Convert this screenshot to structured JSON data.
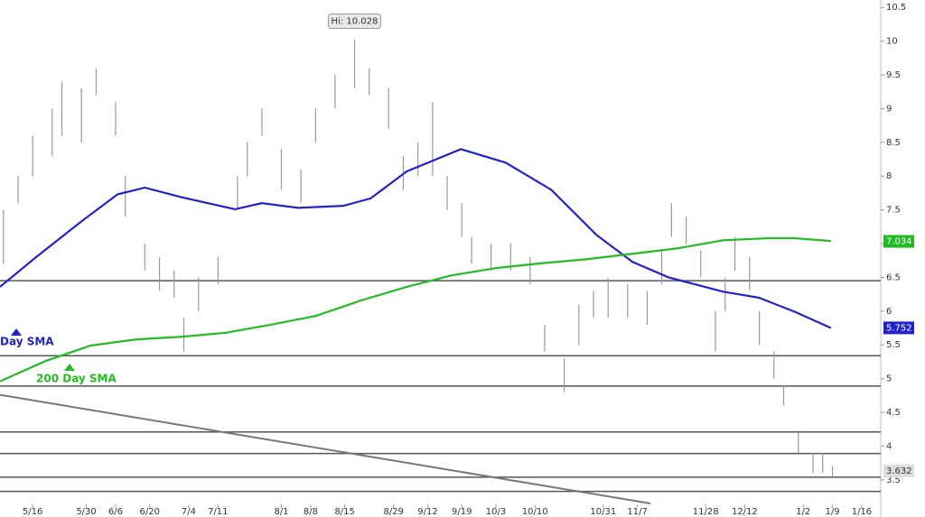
{
  "chart_data": {
    "type": "price-bars",
    "price_bars": {
      "color": "#999999",
      "x": [
        -6,
        -3,
        0,
        4,
        6,
        10,
        13,
        17,
        19,
        23,
        26,
        29,
        31,
        34,
        38,
        42,
        44,
        47,
        51,
        55,
        58,
        62,
        66,
        69,
        73,
        76,
        79,
        82,
        85,
        88,
        90,
        94,
        98,
        102,
        105,
        109,
        112,
        115,
        118,
        122,
        126,
        129,
        131,
        134,
        137,
        140,
        142,
        144,
        147,
        149,
        152,
        154,
        157,
        160,
        162,
        164
      ],
      "high": [
        7.5,
        8.0,
        8.6,
        9.0,
        9.4,
        9.3,
        9.6,
        9.1,
        8.0,
        7.0,
        6.8,
        6.6,
        5.9,
        6.5,
        6.8,
        8.0,
        8.5,
        9.0,
        8.4,
        8.1,
        9.0,
        9.5,
        10.028,
        9.6,
        9.3,
        8.3,
        8.5,
        9.1,
        8.0,
        7.6,
        7.1,
        7.0,
        7.0,
        6.8,
        5.8,
        5.3,
        6.1,
        6.3,
        6.5,
        6.4,
        6.3,
        6.9,
        7.6,
        7.4,
        6.9,
        6.0,
        6.5,
        7.1,
        6.8,
        6.0,
        5.4,
        4.9,
        4.2,
        3.9,
        3.9,
        3.7
      ],
      "low": [
        6.7,
        7.6,
        8.0,
        8.3,
        8.6,
        8.5,
        9.2,
        8.6,
        7.4,
        6.6,
        6.3,
        6.2,
        5.4,
        6.0,
        6.4,
        7.5,
        8.0,
        8.6,
        7.8,
        7.6,
        8.5,
        9.0,
        9.3,
        9.2,
        8.7,
        7.8,
        8.0,
        8.0,
        7.5,
        7.1,
        6.7,
        6.6,
        6.6,
        6.4,
        5.4,
        4.8,
        5.5,
        5.9,
        5.9,
        5.9,
        5.8,
        6.4,
        7.1,
        7.0,
        6.5,
        5.4,
        6.0,
        6.6,
        6.3,
        5.5,
        5.0,
        4.6,
        3.9,
        3.6,
        3.6,
        3.55
      ],
      "last": 3.632
    },
    "high_annotation": "Hi: 10.028",
    "series": [
      {
        "name": "Day SMA",
        "color": "#2222cc",
        "x": [
          -6.7,
          0.7,
          10,
          17.4,
          23,
          30.4,
          41.5,
          47,
          54.4,
          63.7,
          69.3,
          76.7,
          87.8,
          97,
          106.3,
          115.6,
          123,
          130.4,
          141.5,
          148.9,
          156.3,
          163.7
        ],
        "values": [
          6.36,
          6.8,
          7.33,
          7.73,
          7.83,
          7.69,
          7.51,
          7.6,
          7.53,
          7.56,
          7.67,
          8.07,
          8.4,
          8.2,
          7.8,
          7.13,
          6.73,
          6.5,
          6.29,
          6.2,
          5.99,
          5.75
        ],
        "last": 5.752
      },
      {
        "name": "200 Day SMA",
        "color": "#22bb22",
        "x": [
          -6.7,
          2.6,
          11.9,
          21.1,
          30.4,
          39.6,
          48.9,
          58.1,
          67.4,
          76.7,
          85.9,
          95.2,
          104.4,
          113.7,
          123,
          132.2,
          141.5,
          150.7,
          156.3,
          163.7
        ],
        "values": [
          4.96,
          5.26,
          5.49,
          5.58,
          5.62,
          5.68,
          5.8,
          5.93,
          6.16,
          6.36,
          6.53,
          6.64,
          6.71,
          6.77,
          6.85,
          6.93,
          7.05,
          7.08,
          7.08,
          7.04
        ],
        "last": 7.034
      }
    ],
    "levels": [
      6.45,
      5.34,
      4.89,
      4.21,
      3.89,
      3.54,
      3.33
    ],
    "trend_line": {
      "x": [
        -6.7,
        126.7
      ],
      "values": [
        4.76,
        3.15
      ]
    },
    "xlim": [
      -6.7,
      173.9
    ],
    "ylim": [
      2.95,
      10.61
    ],
    "xticks": [
      {
        "value": 0,
        "label": "5/16"
      },
      {
        "value": 11,
        "label": "5/30"
      },
      {
        "value": 17,
        "label": "6/6"
      },
      {
        "value": 24,
        "label": "6/20"
      },
      {
        "value": 32,
        "label": "7/4"
      },
      {
        "value": 38,
        "label": "7/11"
      },
      {
        "value": 51,
        "label": "8/1"
      },
      {
        "value": 57,
        "label": "8/8"
      },
      {
        "value": 64,
        "label": "8/15"
      },
      {
        "value": 74,
        "label": "8/29"
      },
      {
        "value": 81,
        "label": "9/12"
      },
      {
        "value": 88,
        "label": "9/19"
      },
      {
        "value": 95,
        "label": "10/3"
      },
      {
        "value": 103,
        "label": "10/10"
      },
      {
        "value": 117,
        "label": "10/31"
      },
      {
        "value": 124,
        "label": "11/7"
      },
      {
        "value": 138,
        "label": "11/28"
      },
      {
        "value": 146,
        "label": "12/12"
      },
      {
        "value": 158,
        "label": "1/2"
      },
      {
        "value": 164,
        "label": "1/9"
      },
      {
        "value": 170,
        "label": "1/16"
      }
    ],
    "yticks": [
      3.5,
      4,
      4.5,
      5,
      5.5,
      6,
      6.5,
      7,
      7.5,
      8,
      8.5,
      9,
      9.5,
      10,
      10.5
    ]
  }
}
